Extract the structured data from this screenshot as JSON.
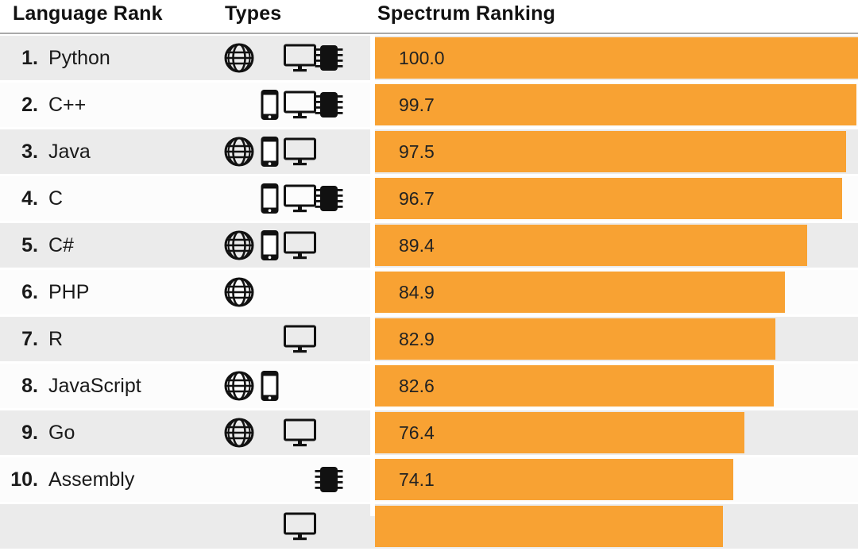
{
  "header": {
    "language_rank": "Language Rank",
    "types": "Types",
    "spectrum_ranking": "Spectrum Ranking"
  },
  "colors": {
    "bar": "#F8A233",
    "row_odd_bg": "#EBEBEB",
    "row_even_bg": "#FCFCFC",
    "header_rule": "#A9A9A9",
    "text": "#1A1A1A"
  },
  "type_icons": {
    "web": "globe-icon",
    "mobile": "smartphone-icon",
    "desktop": "desktop-monitor-icon",
    "embedded": "chip-icon"
  },
  "chart_data": {
    "type": "bar",
    "orientation": "horizontal",
    "title": "Spectrum Ranking",
    "xlabel": "",
    "ylabel": "",
    "xlim": [
      0,
      100
    ],
    "legend": "none",
    "grid": false,
    "rows": [
      {
        "rank": "1.",
        "language": "Python",
        "types": [
          "web",
          "desktop",
          "embedded"
        ],
        "value": 100.0,
        "value_label": "100.0"
      },
      {
        "rank": "2.",
        "language": "C++",
        "types": [
          "mobile",
          "desktop",
          "embedded"
        ],
        "value": 99.7,
        "value_label": "99.7"
      },
      {
        "rank": "3.",
        "language": "Java",
        "types": [
          "web",
          "mobile",
          "desktop"
        ],
        "value": 97.5,
        "value_label": "97.5"
      },
      {
        "rank": "4.",
        "language": "C",
        "types": [
          "mobile",
          "desktop",
          "embedded"
        ],
        "value": 96.7,
        "value_label": "96.7"
      },
      {
        "rank": "5.",
        "language": "C#",
        "types": [
          "web",
          "mobile",
          "desktop"
        ],
        "value": 89.4,
        "value_label": "89.4"
      },
      {
        "rank": "6.",
        "language": "PHP",
        "types": [
          "web"
        ],
        "value": 84.9,
        "value_label": "84.9"
      },
      {
        "rank": "7.",
        "language": "R",
        "types": [
          "desktop"
        ],
        "value": 82.9,
        "value_label": "82.9"
      },
      {
        "rank": "8.",
        "language": "JavaScript",
        "types": [
          "web",
          "mobile"
        ],
        "value": 82.6,
        "value_label": "82.6"
      },
      {
        "rank": "9.",
        "language": "Go",
        "types": [
          "web",
          "desktop"
        ],
        "value": 76.4,
        "value_label": "76.4"
      },
      {
        "rank": "10.",
        "language": "Assembly",
        "types": [
          "embedded"
        ],
        "value": 74.1,
        "value_label": "74.1"
      },
      {
        "rank": "",
        "language": "",
        "types": [
          "desktop"
        ],
        "value": null,
        "value_label": "",
        "bar_fraction": 0.72,
        "partial": true
      }
    ]
  }
}
